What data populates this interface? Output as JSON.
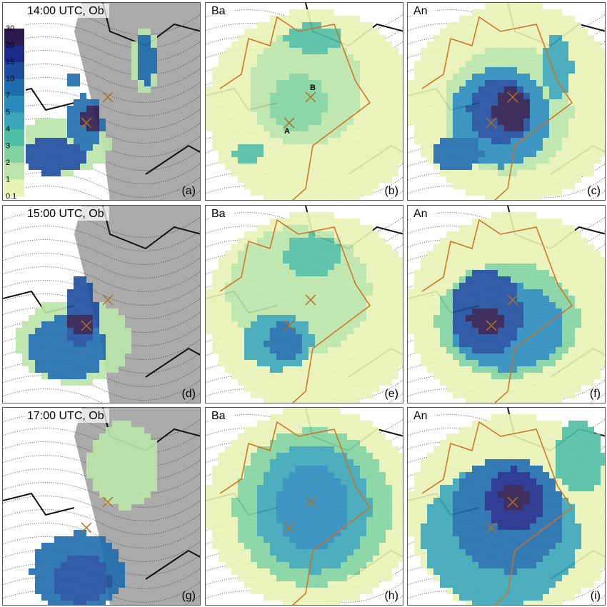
{
  "panels": [
    {
      "title": "14:00 UTC, Ob",
      "label": "(a)"
    },
    {
      "title": "Ba",
      "label": "(b)"
    },
    {
      "title": "An",
      "label": "(c)"
    },
    {
      "title": "15:00 UTC, Ob",
      "label": "(d)"
    },
    {
      "title": "Ba",
      "label": "(e)"
    },
    {
      "title": "An",
      "label": "(f)"
    },
    {
      "title": "17:00 UTC, Ob",
      "label": "(g)"
    },
    {
      "title": "Ba",
      "label": "(h)"
    },
    {
      "title": "An",
      "label": "(i)"
    }
  ],
  "colorbar": {
    "levels": [
      30,
      20,
      15,
      10,
      7,
      5,
      4,
      3,
      2,
      1,
      0.1
    ],
    "colors": [
      "#2b1a4f",
      "#1c2a8a",
      "#1d4c9e",
      "#1f6cad",
      "#2a8cbc",
      "#3aa7b6",
      "#4fbfa3",
      "#82d3a0",
      "#bce6a9",
      "#eaf3b6"
    ]
  },
  "points": [
    {
      "label": "A"
    },
    {
      "label": "B"
    }
  ]
}
